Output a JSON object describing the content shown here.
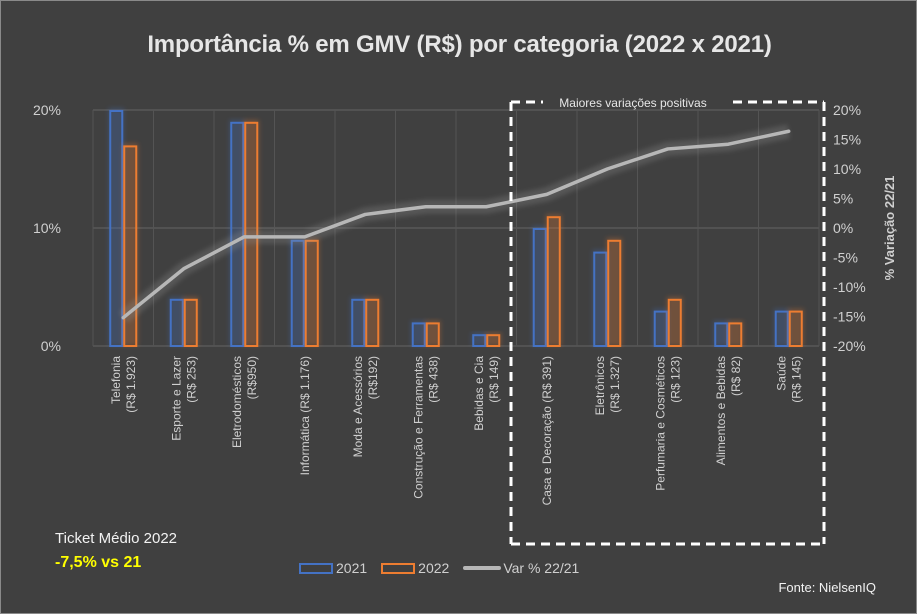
{
  "title": "Importância % em GMV (R$) por categoria (2022 x 2021)",
  "chart_data": {
    "type": "bar",
    "title": "Importância % em GMV (R$) por categoria (2022 x 2021)",
    "categories": [
      [
        "Telefonia",
        "(R$ 1.923)"
      ],
      [
        "Esporte e Lazer",
        "(R$ 253)"
      ],
      [
        "Eletrodomésticos",
        "(R$950)"
      ],
      [
        "Informática (R$ 1.176)"
      ],
      [
        "Moda e Acessórios",
        "(R$192)"
      ],
      [
        "Construção e Ferramentas",
        "(R$ 438)"
      ],
      [
        "Bebidas e Cia",
        "(R$ 149)"
      ],
      [
        "Casa e Decoração (R$ 391)"
      ],
      [
        "Eletrônicos",
        "(R$ 1.327)"
      ],
      [
        "Perfumaria e Cosméticos",
        "(R$ 123)"
      ],
      [
        "Alimentos e Bebidas",
        "(R$ 82)"
      ],
      [
        "Saúde",
        "(R$ 145)"
      ]
    ],
    "series": [
      {
        "name": "2021",
        "axis": "left",
        "kind": "bar",
        "color": "#4472c4",
        "values": [
          20,
          4,
          19,
          9,
          4,
          2,
          1,
          10,
          8,
          3,
          2,
          3
        ]
      },
      {
        "name": "2022",
        "axis": "left",
        "kind": "bar",
        "color": "#ed7d31",
        "values": [
          17,
          4,
          19,
          9,
          4,
          2,
          1,
          11,
          9,
          4,
          2,
          3
        ]
      },
      {
        "name": "Var % 22/21",
        "axis": "right",
        "kind": "line",
        "color": "#b7b7b7",
        "values": [
          -15.2,
          -6.9,
          -1.5,
          -1.5,
          2.3,
          3.6,
          3.6,
          5.7,
          10.0,
          13.4,
          14.2,
          16.4
        ]
      }
    ],
    "y_left": {
      "ticks": [
        "0%",
        "10%",
        "20%"
      ],
      "tick_values": [
        0,
        10,
        20
      ],
      "range": [
        0,
        20
      ]
    },
    "y_right": {
      "label": "% Variação 22/21",
      "ticks": [
        "20%",
        "15%",
        "10%",
        "5%",
        "0%",
        "-5%",
        "-10%",
        "-15%",
        "-20%"
      ],
      "tick_values": [
        20,
        15,
        10,
        5,
        0,
        -5,
        -10,
        -15,
        -20
      ],
      "range": [
        -20,
        20
      ]
    },
    "grid": true,
    "legend_position": "bottom",
    "highlight_box": {
      "label": "Maiores variações positivas",
      "from_category": 7,
      "to_category": 11
    }
  },
  "legend": {
    "items": [
      "2021",
      "2022",
      "Var % 22/21"
    ]
  },
  "annotations": {
    "ticket_label": "Ticket Médio 2022",
    "ticket_value": "-7,5% vs 21",
    "source": "Fonte: NielsenIQ"
  }
}
